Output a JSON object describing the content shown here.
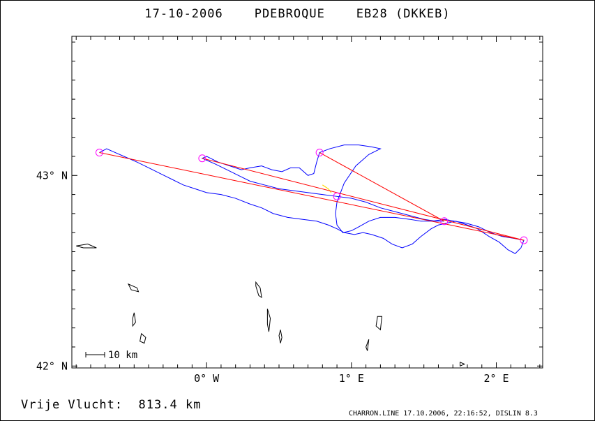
{
  "header": {
    "date": "17-10-2006",
    "pilot": "PDEBROQUE",
    "glider": "EB28 (DKKEB)"
  },
  "footer": {
    "distance_label": "Vrije Vlucht:",
    "distance_value": "813.4 km",
    "credit": "CHARRON.LINE 17.10.2006, 22:16:52, DISLIN 8.3"
  },
  "scale_bar": {
    "label": "10 km"
  },
  "colors": {
    "track": "#0000ff",
    "task": "#ff0000",
    "turnpoint": "#ff00ff",
    "start_marker": "#ffd700",
    "land": "#000000"
  },
  "chart_data": {
    "type": "map",
    "xlabel": "",
    "ylabel": "",
    "x_ticks": [
      {
        "value": 0,
        "label": "0° W"
      },
      {
        "value": 1,
        "label": "1° E"
      },
      {
        "value": 2,
        "label": "2° E"
      }
    ],
    "y_ticks": [
      {
        "value": 42,
        "label": "42° N"
      },
      {
        "value": 43,
        "label": "43° N"
      }
    ],
    "xlim": [
      -0.93,
      2.32
    ],
    "ylim": [
      41.99,
      43.73
    ],
    "turnpoints": [
      {
        "lon": -0.74,
        "lat": 43.12
      },
      {
        "lon": -0.03,
        "lat": 43.09
      },
      {
        "lon": 0.78,
        "lat": 43.12
      },
      {
        "lon": 0.9,
        "lat": 42.89
      },
      {
        "lon": 1.64,
        "lat": 42.76
      },
      {
        "lon": 2.19,
        "lat": 42.66
      }
    ],
    "task_legs": [
      [
        0,
        5
      ],
      [
        1,
        5
      ],
      [
        2,
        4
      ]
    ],
    "track": [
      [
        -0.74,
        43.12
      ],
      [
        -0.69,
        43.14
      ],
      [
        -0.63,
        43.12
      ],
      [
        -0.57,
        43.1
      ],
      [
        -0.48,
        43.07
      ],
      [
        -0.4,
        43.04
      ],
      [
        -0.32,
        43.01
      ],
      [
        -0.24,
        42.98
      ],
      [
        -0.16,
        42.95
      ],
      [
        -0.08,
        42.93
      ],
      [
        0.0,
        42.91
      ],
      [
        0.1,
        42.9
      ],
      [
        0.2,
        42.88
      ],
      [
        0.3,
        42.85
      ],
      [
        0.38,
        42.83
      ],
      [
        0.46,
        42.8
      ],
      [
        0.56,
        42.78
      ],
      [
        0.66,
        42.77
      ],
      [
        0.76,
        42.76
      ],
      [
        0.84,
        42.74
      ],
      [
        0.9,
        42.72
      ],
      [
        0.95,
        42.7
      ],
      [
        1.02,
        42.69
      ],
      [
        1.08,
        42.7
      ],
      [
        1.14,
        42.69
      ],
      [
        1.22,
        42.67
      ],
      [
        1.28,
        42.64
      ],
      [
        1.35,
        42.62
      ],
      [
        1.42,
        42.64
      ],
      [
        1.48,
        42.68
      ],
      [
        1.55,
        42.72
      ],
      [
        1.6,
        42.74
      ],
      [
        1.66,
        42.75
      ],
      [
        1.72,
        42.76
      ],
      [
        1.8,
        42.74
      ],
      [
        1.87,
        42.72
      ],
      [
        1.95,
        42.68
      ],
      [
        2.02,
        42.65
      ],
      [
        2.08,
        42.61
      ],
      [
        2.13,
        42.59
      ],
      [
        2.17,
        42.62
      ],
      [
        2.19,
        42.66
      ],
      [
        2.12,
        42.67
      ],
      [
        2.04,
        42.68
      ],
      [
        1.96,
        42.7
      ],
      [
        1.88,
        42.73
      ],
      [
        1.79,
        42.75
      ],
      [
        1.71,
        42.76
      ],
      [
        1.64,
        42.77
      ],
      [
        1.56,
        42.76
      ],
      [
        1.48,
        42.76
      ],
      [
        1.4,
        42.77
      ],
      [
        1.3,
        42.78
      ],
      [
        1.2,
        42.78
      ],
      [
        1.12,
        42.76
      ],
      [
        1.05,
        42.73
      ],
      [
        1.0,
        42.71
      ],
      [
        0.94,
        42.7
      ],
      [
        0.9,
        42.74
      ],
      [
        0.89,
        42.8
      ],
      [
        0.9,
        42.86
      ],
      [
        0.92,
        42.9
      ],
      [
        0.95,
        42.96
      ],
      [
        1.03,
        43.05
      ],
      [
        1.12,
        43.11
      ],
      [
        1.2,
        43.14
      ],
      [
        1.14,
        43.15
      ],
      [
        1.05,
        43.16
      ],
      [
        0.95,
        43.16
      ],
      [
        0.85,
        43.14
      ],
      [
        0.78,
        43.12
      ],
      [
        0.76,
        43.07
      ],
      [
        0.74,
        43.01
      ],
      [
        0.7,
        43.0
      ],
      [
        0.64,
        43.04
      ],
      [
        0.58,
        43.04
      ],
      [
        0.52,
        43.02
      ],
      [
        0.45,
        43.03
      ],
      [
        0.38,
        43.05
      ],
      [
        0.3,
        43.04
      ],
      [
        0.24,
        43.03
      ],
      [
        0.16,
        43.05
      ],
      [
        0.08,
        43.07
      ],
      [
        0.0,
        43.1
      ],
      [
        -0.03,
        43.09
      ],
      [
        0.06,
        43.06
      ],
      [
        0.14,
        43.03
      ],
      [
        0.22,
        43.0
      ],
      [
        0.3,
        42.97
      ],
      [
        0.4,
        42.95
      ],
      [
        0.5,
        42.93
      ],
      [
        0.6,
        42.92
      ],
      [
        0.7,
        42.91
      ],
      [
        0.8,
        42.9
      ],
      [
        0.9,
        42.89
      ],
      [
        1.0,
        42.88
      ],
      [
        1.1,
        42.86
      ],
      [
        1.2,
        42.83
      ],
      [
        1.3,
        42.81
      ],
      [
        1.4,
        42.79
      ],
      [
        1.5,
        42.77
      ],
      [
        1.58,
        42.76
      ],
      [
        1.64,
        42.76
      ]
    ],
    "start_marker": [
      [
        0.8,
        42.95
      ],
      [
        0.84,
        42.93
      ],
      [
        0.86,
        42.91
      ]
    ],
    "coast_shapes": [
      {
        "type": "polygon",
        "points": [
          [
            -0.9,
            42.63
          ],
          [
            -0.82,
            42.64
          ],
          [
            -0.76,
            42.62
          ],
          [
            -0.85,
            42.62
          ]
        ]
      },
      {
        "type": "polygon",
        "points": [
          [
            -0.54,
            42.43
          ],
          [
            -0.48,
            42.41
          ],
          [
            -0.47,
            42.39
          ],
          [
            -0.52,
            42.4
          ]
        ]
      },
      {
        "type": "polygon",
        "points": [
          [
            -0.5,
            42.28
          ],
          [
            -0.49,
            42.23
          ],
          [
            -0.51,
            42.21
          ],
          [
            -0.51,
            42.25
          ]
        ]
      },
      {
        "type": "polygon",
        "points": [
          [
            -0.45,
            42.17
          ],
          [
            -0.42,
            42.15
          ],
          [
            -0.43,
            42.12
          ],
          [
            -0.46,
            42.13
          ]
        ]
      },
      {
        "type": "polygon",
        "points": [
          [
            0.34,
            42.44
          ],
          [
            0.37,
            42.41
          ],
          [
            0.38,
            42.36
          ],
          [
            0.36,
            42.37
          ],
          [
            0.34,
            42.42
          ]
        ]
      },
      {
        "type": "polygon",
        "points": [
          [
            0.42,
            42.3
          ],
          [
            0.44,
            42.25
          ],
          [
            0.43,
            42.18
          ],
          [
            0.42,
            42.22
          ]
        ]
      },
      {
        "type": "polygon",
        "points": [
          [
            0.51,
            42.19
          ],
          [
            0.52,
            42.15
          ],
          [
            0.51,
            42.12
          ],
          [
            0.5,
            42.16
          ]
        ]
      },
      {
        "type": "polygon",
        "points": [
          [
            1.12,
            42.14
          ],
          [
            1.11,
            42.08
          ],
          [
            1.1,
            42.1
          ]
        ]
      },
      {
        "type": "polygon",
        "points": [
          [
            1.18,
            42.26
          ],
          [
            1.21,
            42.26
          ],
          [
            1.2,
            42.19
          ],
          [
            1.17,
            42.21
          ]
        ]
      },
      {
        "type": "polygon",
        "points": [
          [
            1.75,
            42.02
          ],
          [
            1.78,
            42.01
          ],
          [
            1.75,
            42.0
          ]
        ]
      }
    ]
  }
}
